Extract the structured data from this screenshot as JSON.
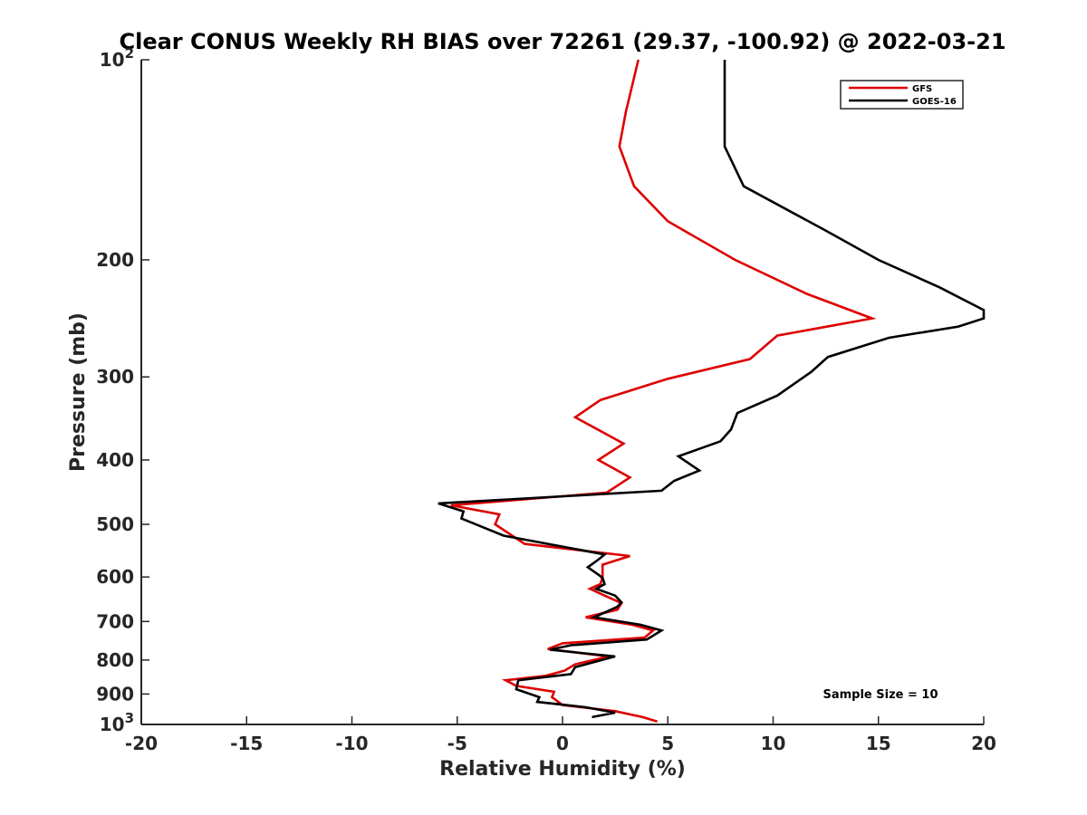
{
  "chart_data": {
    "type": "line",
    "title": "Clear CONUS Weekly RH BIAS over 72261 (29.37, -100.92) @ 2022-03-21",
    "xlabel": "Relative Humidity (%)",
    "ylabel": "Pressure (mb)",
    "xlim": [
      -20,
      20
    ],
    "ylim": [
      100,
      1000
    ],
    "y_scale": "log",
    "y_reversed": true,
    "x_ticks": [
      -20,
      -15,
      -10,
      -5,
      0,
      5,
      10,
      15,
      20
    ],
    "x_tick_labels": [
      "-20",
      "-15",
      "-10",
      "-5",
      "0",
      "5",
      "10",
      "15",
      "20"
    ],
    "y_ticks": [
      100,
      200,
      300,
      400,
      500,
      600,
      700,
      800,
      900,
      1000
    ],
    "y_tick_labels": [
      {
        "base": "10",
        "exp": "2"
      },
      {
        "base": "200",
        "exp": ""
      },
      {
        "base": "300",
        "exp": ""
      },
      {
        "base": "400",
        "exp": ""
      },
      {
        "base": "500",
        "exp": ""
      },
      {
        "base": "600",
        "exp": ""
      },
      {
        "base": "700",
        "exp": ""
      },
      {
        "base": "800",
        "exp": ""
      },
      {
        "base": "900",
        "exp": ""
      },
      {
        "base": "10",
        "exp": "3"
      }
    ],
    "grid": false,
    "legend_position": "top-right",
    "annotation": "Sample Size = 10",
    "series": [
      {
        "name": "GFS",
        "color": "#dd0000",
        "points": [
          [
            3.6,
            100
          ],
          [
            3.0,
            120
          ],
          [
            2.7,
            135
          ],
          [
            3.4,
            155
          ],
          [
            5.0,
            175
          ],
          [
            8.2,
            200
          ],
          [
            11.6,
            225
          ],
          [
            14.7,
            245
          ],
          [
            10.2,
            260
          ],
          [
            8.9,
            282
          ],
          [
            5.0,
            302
          ],
          [
            1.8,
            325
          ],
          [
            0.6,
            345
          ],
          [
            2.9,
            378
          ],
          [
            1.7,
            400
          ],
          [
            3.2,
            425
          ],
          [
            2.1,
            448
          ],
          [
            -5.3,
            468
          ],
          [
            -3.0,
            483
          ],
          [
            -3.2,
            500
          ],
          [
            -1.8,
            535
          ],
          [
            3.2,
            558
          ],
          [
            1.9,
            575
          ],
          [
            1.9,
            600
          ],
          [
            1.8,
            615
          ],
          [
            1.3,
            625
          ],
          [
            2.0,
            640
          ],
          [
            2.8,
            657
          ],
          [
            2.6,
            672
          ],
          [
            1.1,
            690
          ],
          [
            3.3,
            708
          ],
          [
            4.3,
            722
          ],
          [
            3.9,
            740
          ],
          [
            0.0,
            755
          ],
          [
            -0.7,
            770
          ],
          [
            2.2,
            790
          ],
          [
            0.6,
            812
          ],
          [
            0.1,
            830
          ],
          [
            -0.8,
            845
          ],
          [
            -2.7,
            858
          ],
          [
            -2.2,
            875
          ],
          [
            -0.4,
            893
          ],
          [
            -0.5,
            910
          ],
          [
            0.0,
            935
          ],
          [
            2.5,
            955
          ],
          [
            3.8,
            975
          ],
          [
            4.5,
            990
          ]
        ]
      },
      {
        "name": "GOES-16",
        "color": "#000000",
        "points": [
          [
            7.7,
            100
          ],
          [
            7.7,
            120
          ],
          [
            7.7,
            135
          ],
          [
            8.6,
            155
          ],
          [
            12.4,
            180
          ],
          [
            15.0,
            200
          ],
          [
            17.9,
            220
          ],
          [
            20.0,
            238
          ],
          [
            20.0,
            245
          ],
          [
            18.8,
            252
          ],
          [
            15.5,
            262
          ],
          [
            12.6,
            280
          ],
          [
            11.8,
            295
          ],
          [
            10.2,
            320
          ],
          [
            8.3,
            340
          ],
          [
            8.0,
            360
          ],
          [
            7.5,
            375
          ],
          [
            5.5,
            395
          ],
          [
            6.5,
            415
          ],
          [
            5.3,
            430
          ],
          [
            4.7,
            445
          ],
          [
            -5.9,
            465
          ],
          [
            -4.7,
            478
          ],
          [
            -4.8,
            490
          ],
          [
            -2.8,
            520
          ],
          [
            2.0,
            555
          ],
          [
            1.7,
            565
          ],
          [
            1.2,
            580
          ],
          [
            1.7,
            595
          ],
          [
            1.9,
            602
          ],
          [
            2.0,
            615
          ],
          [
            1.6,
            625
          ],
          [
            2.5,
            640
          ],
          [
            2.8,
            655
          ],
          [
            2.6,
            665
          ],
          [
            1.5,
            690
          ],
          [
            3.7,
            708
          ],
          [
            4.7,
            722
          ],
          [
            4.0,
            745
          ],
          [
            0.4,
            760
          ],
          [
            -0.6,
            772
          ],
          [
            2.5,
            790
          ],
          [
            0.6,
            820
          ],
          [
            0.4,
            840
          ],
          [
            -2.1,
            858
          ],
          [
            -2.2,
            885
          ],
          [
            -1.1,
            910
          ],
          [
            -1.2,
            925
          ],
          [
            1.1,
            942
          ],
          [
            2.5,
            960
          ],
          [
            1.4,
            975
          ]
        ]
      }
    ]
  }
}
